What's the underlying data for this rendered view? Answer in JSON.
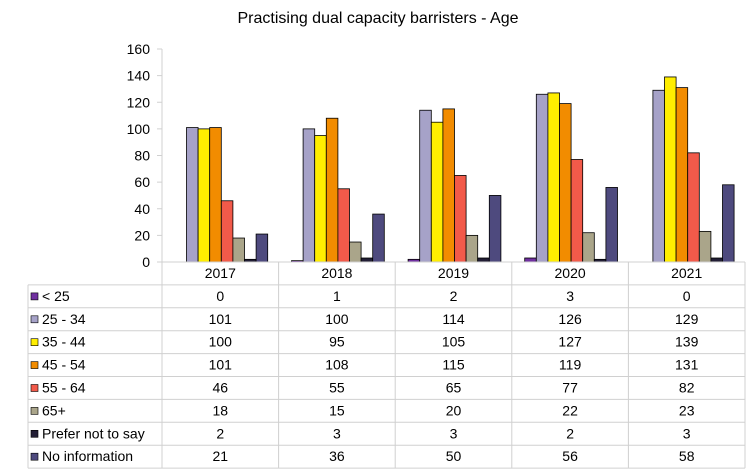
{
  "chart_data": {
    "type": "bar",
    "title": "Practising dual capacity barristers - Age",
    "categories": [
      "2017",
      "2018",
      "2019",
      "2020",
      "2021"
    ],
    "ylim": [
      0,
      160
    ],
    "yticks": [
      0,
      20,
      40,
      60,
      80,
      100,
      120,
      140,
      160
    ],
    "grid": false,
    "legend": "data table below chart",
    "series": [
      {
        "name": "< 25",
        "color": "#7030a0",
        "values": [
          0,
          1,
          2,
          3,
          0
        ]
      },
      {
        "name": "25 - 34",
        "color": "#a6a2c8",
        "values": [
          101,
          100,
          114,
          126,
          129
        ]
      },
      {
        "name": "35 - 44",
        "color": "#ffee00",
        "values": [
          100,
          95,
          105,
          127,
          139
        ]
      },
      {
        "name": "45 - 54",
        "color": "#f28c00",
        "values": [
          101,
          108,
          115,
          119,
          131
        ]
      },
      {
        "name": "55 - 64",
        "color": "#f25a4a",
        "values": [
          46,
          55,
          65,
          77,
          82
        ]
      },
      {
        "name": "65+",
        "color": "#aaa58a",
        "values": [
          18,
          15,
          20,
          22,
          23
        ]
      },
      {
        "name": "Prefer not to say",
        "color": "#221e35",
        "values": [
          2,
          3,
          3,
          2,
          3
        ]
      },
      {
        "name": "No information",
        "color": "#4e4a7e",
        "values": [
          21,
          36,
          50,
          56,
          58
        ]
      }
    ]
  }
}
